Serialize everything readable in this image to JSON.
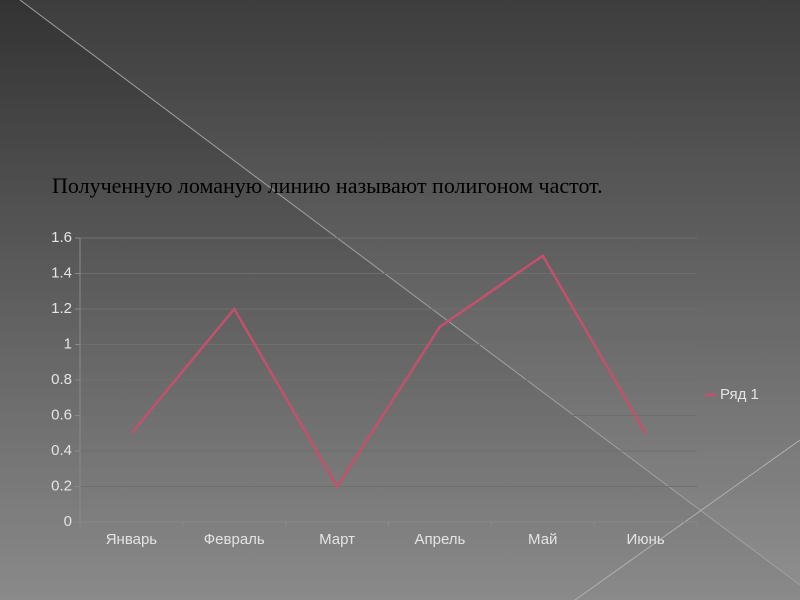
{
  "chart_data": {
    "type": "line",
    "title": "Полученную ломаную линию называют полигоном частот.",
    "categories": [
      "Январь",
      "Февраль",
      "Март",
      "Апрель",
      "Май",
      "Июнь"
    ],
    "series": [
      {
        "name": "Ряд 1",
        "color": "#c4506e",
        "values": [
          0.5,
          1.2,
          0.2,
          1.1,
          1.5,
          0.5
        ]
      }
    ],
    "ylim": [
      0,
      1.6
    ],
    "yticks": [
      0,
      0.2,
      0.4,
      0.6,
      0.8,
      1,
      1.2,
      1.4,
      1.6
    ],
    "grid": true,
    "legend": "right"
  }
}
